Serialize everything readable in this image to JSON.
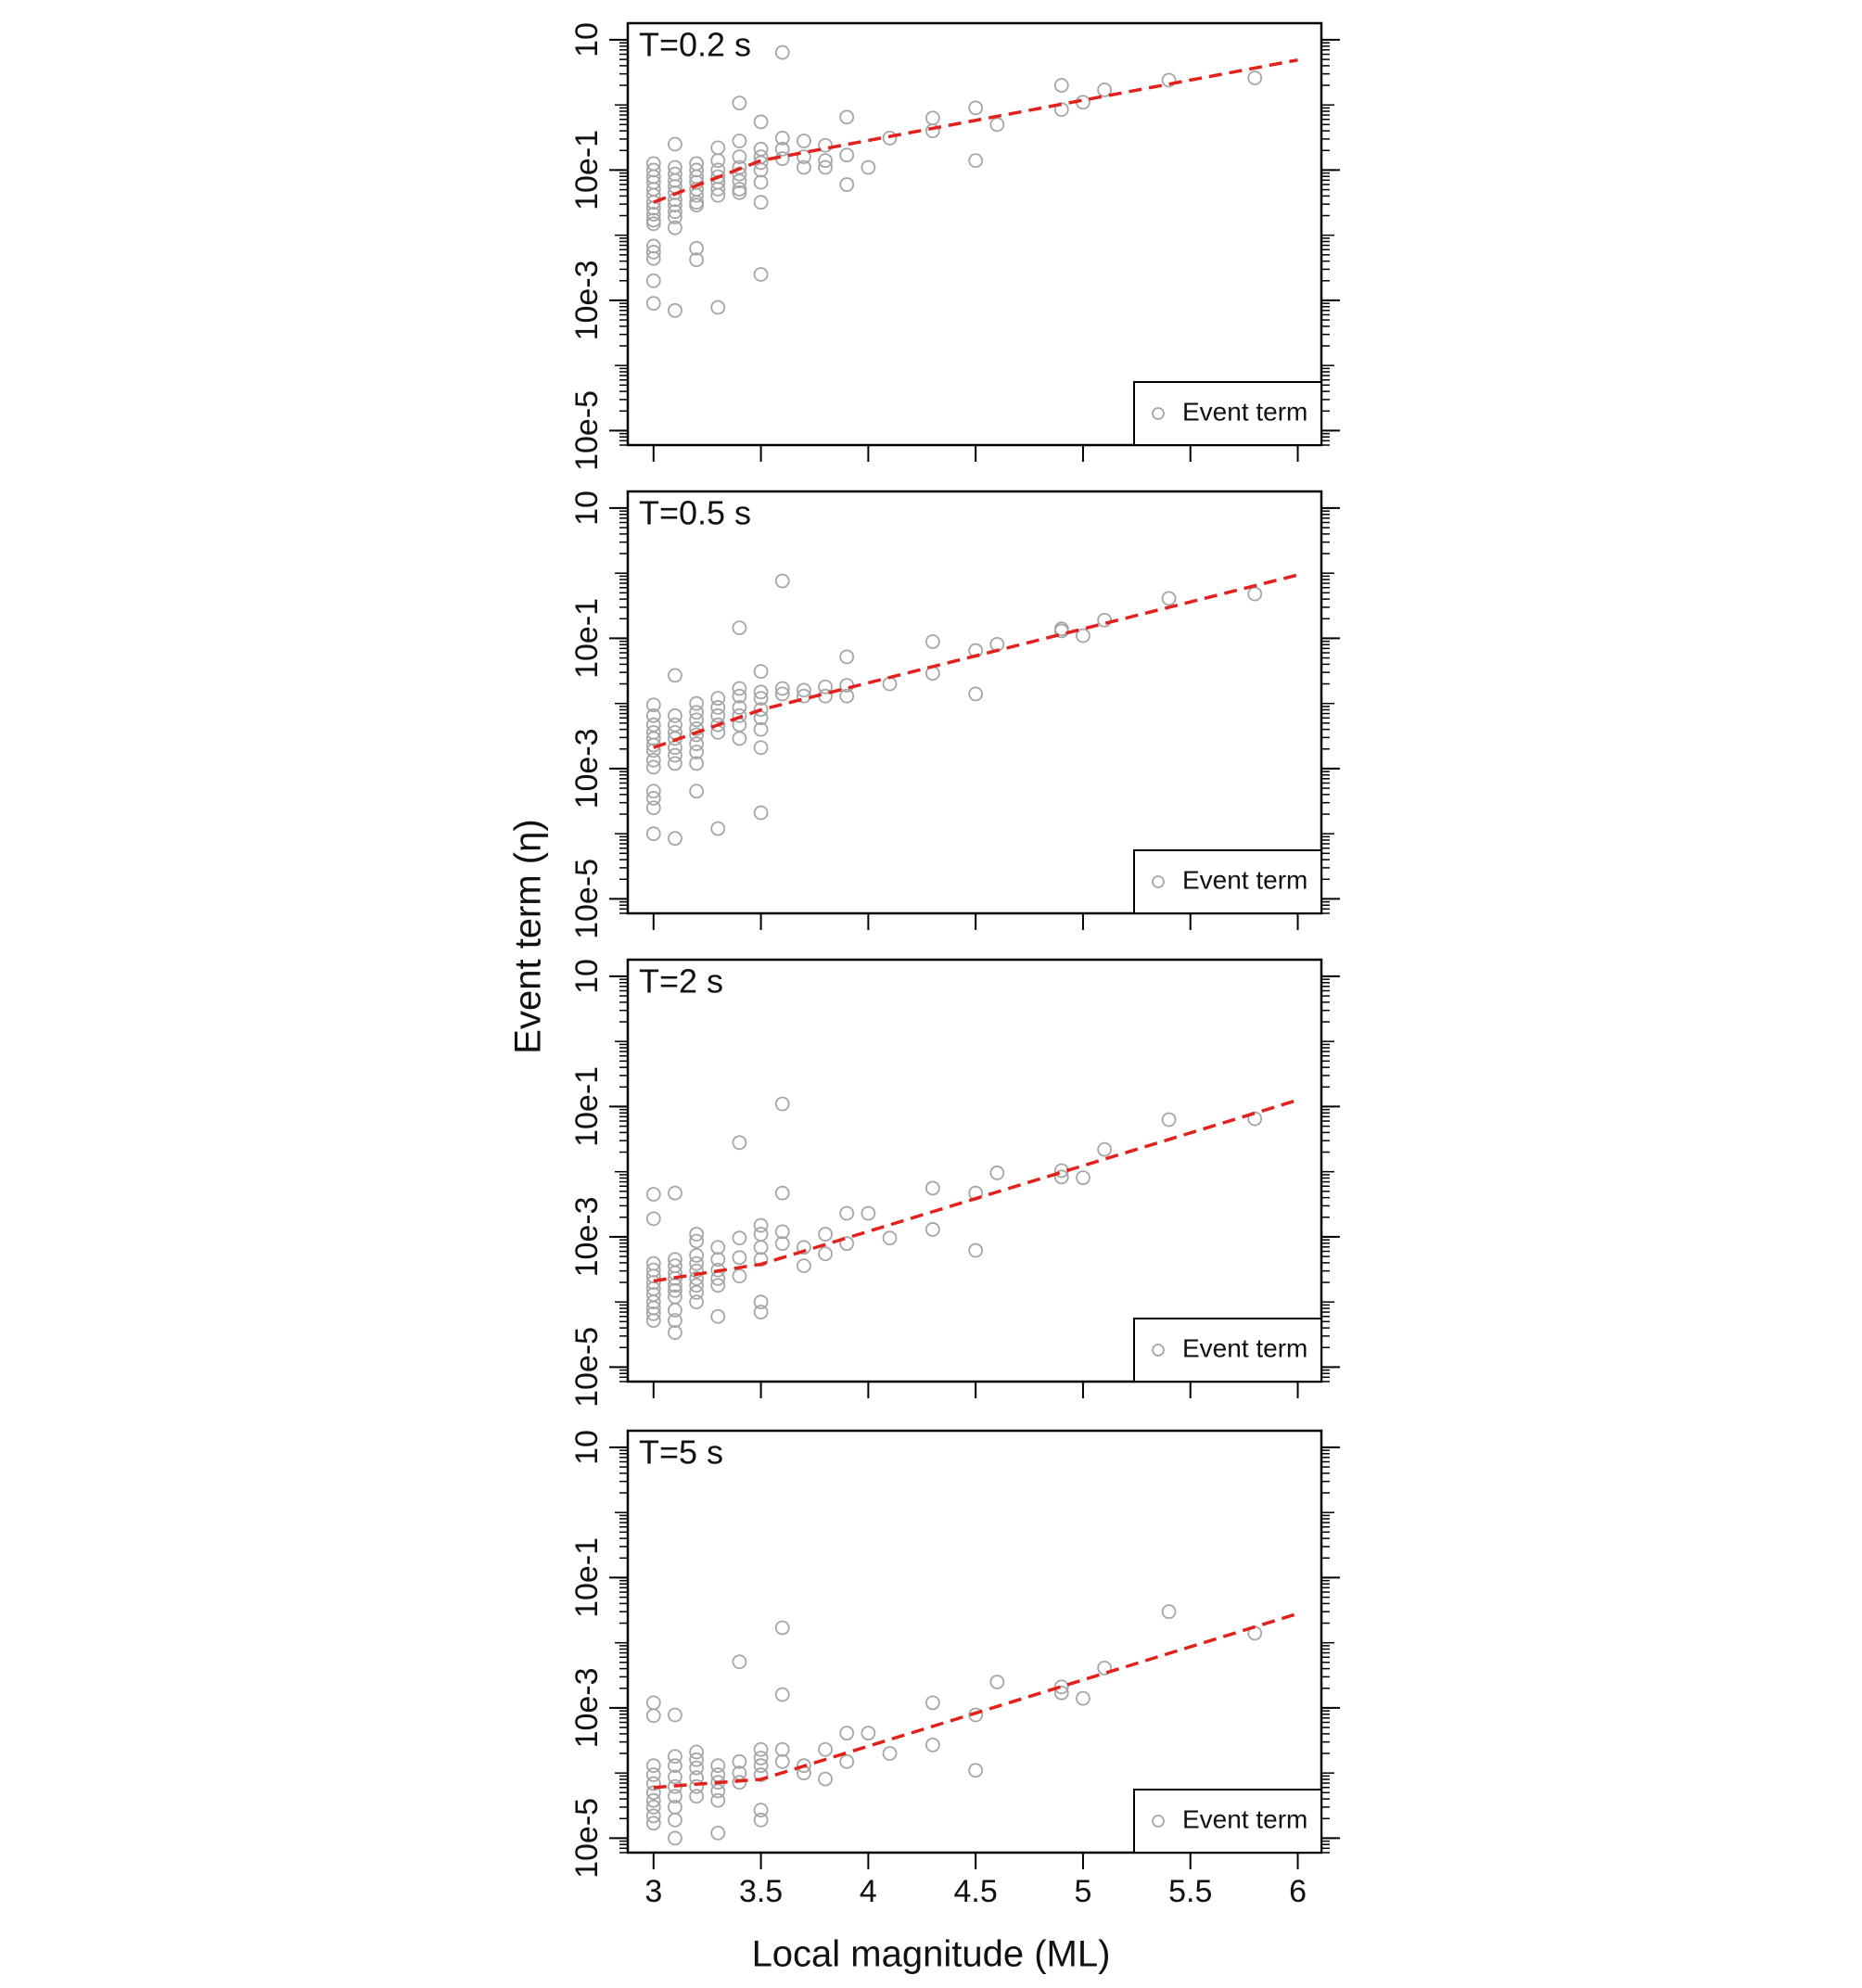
{
  "xlabel": "Local magnitude (ML)",
  "ylabel": "Event term (η)",
  "chart_data": [
    {
      "type": "scatter",
      "title": "T=0.2 s",
      "xlim": [
        2.88,
        6.11
      ],
      "ylim": [
        6e-06,
        18
      ],
      "log_y": true,
      "xticks": [
        3,
        3.5,
        4,
        4.5,
        5,
        5.5,
        6
      ],
      "xtick_labels": false,
      "yticks": [
        10,
        {
          "value": 0.1,
          "label": "10e-1"
        },
        {
          "value": 0.001,
          "label": "10e-3"
        },
        {
          "value": 1e-05,
          "label": "10e-5"
        }
      ],
      "legend": "lower right",
      "series": [
        {
          "name": "Event term",
          "color": "#a6a6a6",
          "marker": "circle",
          "x": [
            3,
            3,
            3,
            3,
            3,
            3,
            3,
            3,
            3,
            3,
            3,
            3,
            3,
            3,
            3,
            3,
            3.1,
            3.1,
            3.1,
            3.1,
            3.1,
            3.1,
            3.1,
            3.1,
            3.1,
            3.1,
            3.1,
            3.1,
            3.2,
            3.2,
            3.2,
            3.2,
            3.2,
            3.2,
            3.2,
            3.2,
            3.2,
            3.2,
            3.3,
            3.3,
            3.3,
            3.3,
            3.3,
            3.3,
            3.3,
            3.3,
            3.4,
            3.4,
            3.4,
            3.4,
            3.4,
            3.4,
            3.4,
            3.4,
            3.5,
            3.5,
            3.5,
            3.5,
            3.5,
            3.5,
            3.5,
            3.5,
            3.6,
            3.6,
            3.6,
            3.6,
            3.7,
            3.7,
            3.7,
            3.8,
            3.8,
            3.8,
            3.9,
            3.9,
            3.9,
            4.0,
            4.1,
            4.3,
            4.3,
            4.5,
            4.5,
            4.6,
            4.9,
            4.9,
            5.0,
            5.1,
            5.4,
            5.8
          ],
          "values": [
            0.126,
            0.1,
            0.079,
            0.065,
            0.051,
            0.041,
            0.032,
            0.026,
            0.021,
            0.017,
            0.015,
            0.0068,
            0.0055,
            0.0044,
            0.002,
            0.0009,
            0.25,
            0.11,
            0.087,
            0.069,
            0.056,
            0.045,
            0.035,
            0.029,
            0.023,
            0.019,
            0.013,
            0.0007,
            0.126,
            0.1,
            0.079,
            0.065,
            0.051,
            0.041,
            0.032,
            0.029,
            0.0063,
            0.0042,
            0.22,
            0.14,
            0.1,
            0.079,
            0.065,
            0.051,
            0.041,
            0.00078,
            1.07,
            0.28,
            0.16,
            0.11,
            0.087,
            0.068,
            0.051,
            0.045,
            0.55,
            0.21,
            0.16,
            0.13,
            0.1,
            0.065,
            0.032,
            0.0025,
            6.4,
            0.31,
            0.21,
            0.15,
            0.28,
            0.16,
            0.11,
            0.24,
            0.14,
            0.11,
            0.65,
            0.17,
            0.06,
            0.11,
            0.31,
            0.63,
            0.4,
            0.9,
            0.14,
            0.5,
            2.0,
            0.85,
            1.1,
            1.7,
            2.4,
            2.6
          ]
        },
        {
          "kind": "line",
          "color": "#e3211c",
          "dashed": true,
          "x": [
            3,
            3.5,
            6
          ],
          "values": [
            0.032,
            0.14,
            4.9
          ]
        }
      ]
    },
    {
      "type": "scatter",
      "title": "T=0.5 s",
      "xlim": [
        2.88,
        6.11
      ],
      "ylim": [
        6e-06,
        18
      ],
      "log_y": true,
      "xticks": [
        3,
        3.5,
        4,
        4.5,
        5,
        5.5,
        6
      ],
      "xtick_labels": false,
      "yticks": [
        10,
        {
          "value": 0.1,
          "label": "10e-1"
        },
        {
          "value": 0.001,
          "label": "10e-3"
        },
        {
          "value": 1e-05,
          "label": "10e-5"
        }
      ],
      "legend": "lower right",
      "series": [
        {
          "name": "Event term",
          "color": "#a6a6a6",
          "marker": "circle",
          "x": [
            3,
            3,
            3,
            3,
            3,
            3,
            3,
            3,
            3,
            3,
            3,
            3,
            3,
            3.1,
            3.1,
            3.1,
            3.1,
            3.1,
            3.1,
            3.1,
            3.1,
            3.1,
            3.2,
            3.2,
            3.2,
            3.2,
            3.2,
            3.2,
            3.2,
            3.2,
            3.2,
            3.3,
            3.3,
            3.3,
            3.3,
            3.3,
            3.3,
            3.4,
            3.4,
            3.4,
            3.4,
            3.4,
            3.4,
            3.4,
            3.5,
            3.5,
            3.5,
            3.5,
            3.5,
            3.5,
            3.5,
            3.5,
            3.6,
            3.6,
            3.6,
            3.7,
            3.7,
            3.8,
            3.8,
            3.9,
            3.9,
            3.9,
            4.1,
            4.3,
            4.3,
            4.5,
            4.5,
            4.6,
            4.9,
            4.9,
            5.0,
            5.1,
            5.4,
            5.8
          ],
          "values": [
            0.0095,
            0.0065,
            0.0047,
            0.0036,
            0.0029,
            0.0023,
            0.0019,
            0.00135,
            0.00105,
            0.00045,
            0.00035,
            0.00025,
            0.0001,
            0.027,
            0.0065,
            0.0047,
            0.0036,
            0.0029,
            0.0021,
            0.0016,
            0.0012,
            8.5e-05,
            0.01,
            0.0073,
            0.0056,
            0.0041,
            0.0033,
            0.0024,
            0.0018,
            0.0012,
            0.00045,
            0.012,
            0.0087,
            0.0065,
            0.0047,
            0.0036,
            0.00012,
            0.145,
            0.017,
            0.013,
            0.0087,
            0.0065,
            0.0047,
            0.0029,
            0.031,
            0.015,
            0.012,
            0.0081,
            0.006,
            0.004,
            0.0021,
            0.00021,
            0.76,
            0.017,
            0.014,
            0.016,
            0.013,
            0.018,
            0.013,
            0.052,
            0.019,
            0.013,
            0.02,
            0.089,
            0.029,
            0.065,
            0.014,
            0.081,
            0.14,
            0.13,
            0.11,
            0.19,
            0.41,
            0.48
          ]
        },
        {
          "kind": "line",
          "color": "#e3211c",
          "dashed": true,
          "x": [
            3,
            3.5,
            6
          ],
          "values": [
            0.0021,
            0.008,
            0.94
          ]
        }
      ]
    },
    {
      "type": "scatter",
      "title": "T=2 s",
      "xlim": [
        2.88,
        6.11
      ],
      "ylim": [
        6e-06,
        18
      ],
      "log_y": true,
      "xticks": [
        3,
        3.5,
        4,
        4.5,
        5,
        5.5,
        6
      ],
      "xtick_labels": false,
      "yticks": [
        10,
        {
          "value": 0.1,
          "label": "10e-1"
        },
        {
          "value": 0.001,
          "label": "10e-3"
        },
        {
          "value": 1e-05,
          "label": "10e-5"
        }
      ],
      "legend": "lower right",
      "series": [
        {
          "name": "Event term",
          "color": "#a6a6a6",
          "marker": "circle",
          "x": [
            3,
            3,
            3,
            3,
            3,
            3,
            3,
            3,
            3,
            3,
            3,
            3,
            3.1,
            3.1,
            3.1,
            3.1,
            3.1,
            3.1,
            3.1,
            3.1,
            3.1,
            3.1,
            3.1,
            3.2,
            3.2,
            3.2,
            3.2,
            3.2,
            3.2,
            3.2,
            3.2,
            3.2,
            3.3,
            3.3,
            3.3,
            3.3,
            3.3,
            3.3,
            3.4,
            3.4,
            3.4,
            3.4,
            3.5,
            3.5,
            3.5,
            3.5,
            3.5,
            3.5,
            3.6,
            3.6,
            3.6,
            3.6,
            3.7,
            3.7,
            3.8,
            3.8,
            3.9,
            3.9,
            4.0,
            4.1,
            4.3,
            4.3,
            4.5,
            4.5,
            4.6,
            4.9,
            4.9,
            5.0,
            5.1,
            5.4,
            5.8
          ],
          "values": [
            0.0045,
            0.0019,
            0.00039,
            0.00031,
            0.00025,
            0.0002,
            0.00016,
            0.00013,
            0.0001,
            8.1e-05,
            6.6e-05,
            5.2e-05,
            0.0047,
            0.00045,
            0.00036,
            0.00028,
            0.00023,
            0.00018,
            0.00015,
            0.00012,
            7.5e-05,
            5.2e-05,
            3.4e-05,
            0.0011,
            0.00086,
            0.00052,
            0.00039,
            0.0003,
            0.00023,
            0.00018,
            0.00014,
            0.0001,
            0.00069,
            0.00045,
            0.00031,
            0.00023,
            0.00018,
            6e-05,
            0.028,
            0.00096,
            0.00048,
            0.00025,
            0.0015,
            0.0011,
            0.00069,
            0.00045,
            0.0001,
            7e-05,
            0.11,
            0.0047,
            0.0012,
            0.00079,
            0.00069,
            0.00036,
            0.0011,
            0.00055,
            0.0023,
            0.00079,
            0.0023,
            0.00096,
            0.0056,
            0.0013,
            0.0047,
            0.00062,
            0.0096,
            0.0104,
            0.0083,
            0.0081,
            0.022,
            0.063,
            0.065
          ]
        },
        {
          "kind": "line",
          "color": "#e3211c",
          "dashed": true,
          "x": [
            3,
            3.5,
            6
          ],
          "values": [
            0.00021,
            0.00038,
            0.126
          ]
        }
      ]
    },
    {
      "type": "scatter",
      "title": "T=5 s",
      "xlim": [
        2.88,
        6.11
      ],
      "ylim": [
        6e-06,
        18
      ],
      "log_y": true,
      "xticks": [
        3,
        3.5,
        4,
        4.5,
        5,
        5.5,
        6
      ],
      "xtick_labels": true,
      "yticks": [
        10,
        {
          "value": 0.1,
          "label": "10e-1"
        },
        {
          "value": 0.001,
          "label": "10e-3"
        },
        {
          "value": 1e-05,
          "label": "10e-5"
        }
      ],
      "legend": "lower right",
      "series": [
        {
          "name": "Event term",
          "color": "#a6a6a6",
          "marker": "circle",
          "x": [
            3,
            3,
            3,
            3,
            3,
            3,
            3,
            3,
            3,
            3,
            3.1,
            3.1,
            3.1,
            3.1,
            3.1,
            3.1,
            3.1,
            3.1,
            3.1,
            3.2,
            3.2,
            3.2,
            3.2,
            3.2,
            3.2,
            3.3,
            3.3,
            3.3,
            3.3,
            3.3,
            3.3,
            3.4,
            3.4,
            3.4,
            3.4,
            3.5,
            3.5,
            3.5,
            3.5,
            3.5,
            3.5,
            3.6,
            3.6,
            3.6,
            3.6,
            3.7,
            3.7,
            3.8,
            3.8,
            3.9,
            3.9,
            4.0,
            4.1,
            4.3,
            4.3,
            4.5,
            4.5,
            4.6,
            4.9,
            4.9,
            5.0,
            5.1,
            5.4,
            5.8
          ],
          "values": [
            0.0012,
            0.00076,
            0.00013,
            9.4e-05,
            6.9e-05,
            5e-05,
            3.8e-05,
            3e-05,
            2.2e-05,
            1.7e-05,
            0.00078,
            0.00018,
            0.00013,
            8.7e-05,
            6.2e-05,
            4.4e-05,
            3e-05,
            1.9e-05,
            1e-05,
            0.00021,
            0.00016,
            0.00012,
            8.5e-05,
            6.2e-05,
            4.4e-05,
            0.00013,
            9.4e-05,
            7.2e-05,
            5.3e-05,
            3.8e-05,
            1.2e-05,
            0.0051,
            0.00015,
            0.0001,
            7.2e-05,
            0.00023,
            0.00017,
            0.00013,
            9.4e-05,
            2.7e-05,
            1.9e-05,
            0.017,
            0.0016,
            0.00023,
            0.00015,
            0.00013,
            0.0001,
            0.00023,
            8.1e-05,
            0.00041,
            0.00015,
            0.00041,
            0.0002,
            0.0012,
            0.00027,
            0.00078,
            0.00011,
            0.0025,
            0.0021,
            0.0017,
            0.0014,
            0.0041,
            0.03,
            0.014
          ]
        },
        {
          "kind": "line",
          "color": "#e3211c",
          "dashed": true,
          "x": [
            3,
            3.5,
            6
          ],
          "values": [
            6e-05,
            8e-05,
            0.028
          ]
        }
      ]
    }
  ]
}
